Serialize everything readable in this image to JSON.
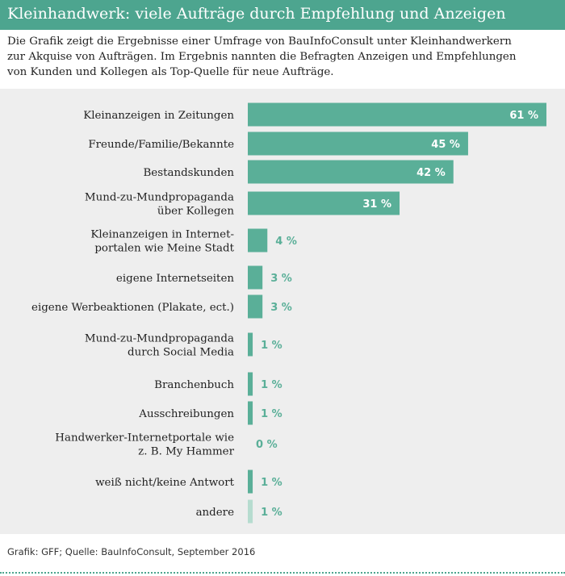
{
  "header": {
    "title": "Kleinhandwerk: viele Aufträge durch Empfehlung und Anzeigen"
  },
  "intro": {
    "lines": [
      "Die Grafik zeigt die Ergebnisse einer Umfrage von BauInfoConsult unter Kleinhandwerkern",
      "zur Akquise von Aufträgen. Im Ergebnis nannten die Befragten Anzeigen und Empfehlungen",
      "von Kunden und Kollegen als Top-Quelle für neue Aufträge."
    ]
  },
  "footer": {
    "source": "Grafik: GFF; Quelle: BauInfoConsult, September 2016"
  },
  "colors": {
    "accent": "#4da58f",
    "bar": "#5aaf98",
    "bar_light": "#b6dccf",
    "label_outside": "#5aaf98",
    "label_inside": "#ffffff",
    "panel_bg": "#eeeeee"
  },
  "chart_data": {
    "type": "bar",
    "orientation": "horizontal",
    "title": "",
    "xlabel": "",
    "ylabel": "",
    "xlim": [
      0,
      61
    ],
    "unit": "%",
    "grid": false,
    "legend": "none",
    "categories": [
      [
        "Kleinanzeigen in Zeitungen"
      ],
      [
        "Freunde/Familie/Bekannte"
      ],
      [
        "Bestandskunden"
      ],
      [
        "Mund-zu-Mundpropaganda",
        "über Kollegen"
      ],
      [
        "Kleinanzeigen in Internet-",
        "portalen wie Meine Stadt"
      ],
      [
        "eigene Internetseiten"
      ],
      [
        "eigene Werbeaktionen (Plakate, ect.)"
      ],
      [
        "Mund-zu-Mundpropaganda",
        "durch Social Media"
      ],
      [
        "Branchenbuch"
      ],
      [
        "Ausschreibungen"
      ],
      [
        "Handwerker-Internetportale wie",
        "z. B. My Hammer"
      ],
      [
        "weiß nicht/keine Antwort"
      ],
      [
        "andere"
      ]
    ],
    "values": [
      61,
      45,
      42,
      31,
      4,
      3,
      3,
      1,
      1,
      1,
      0,
      1,
      1
    ],
    "value_labels": [
      "61 %",
      "45 %",
      "42 %",
      "31 %",
      "4 %",
      "3 %",
      "3 %",
      "1 %",
      "1 %",
      "1 %",
      "0 %",
      "1 %",
      "1 %"
    ],
    "highlight_last": true
  }
}
